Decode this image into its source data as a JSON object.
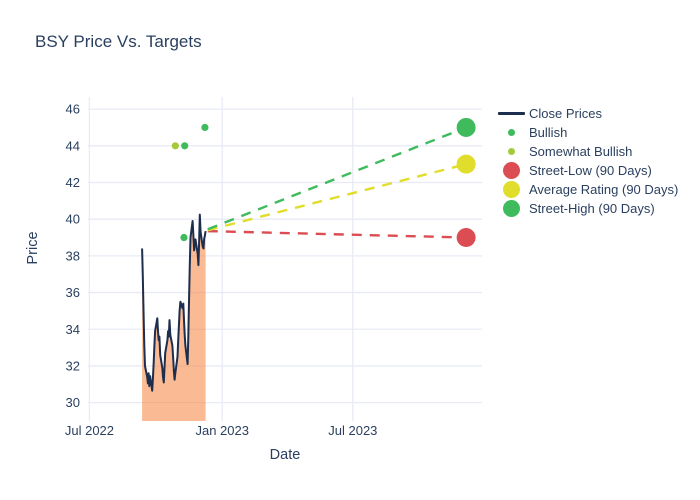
{
  "chart_data": {
    "type": "line",
    "title": "BSY Price Vs. Targets",
    "xlabel": "Date",
    "ylabel": "Price",
    "grid": true,
    "grid_color": "#e8ebf5",
    "text_color": "#2a3f5f",
    "background": "#ffffff",
    "xlim": [
      "2022-06-29",
      "2023-12-27"
    ],
    "ylim": [
      29.0,
      46.66
    ],
    "x_ticks": [
      {
        "date": "2022-07-01",
        "label": "Jul 2022"
      },
      {
        "date": "2023-01-01",
        "label": "Jan 2023"
      },
      {
        "date": "2023-07-01",
        "label": "Jul 2023"
      }
    ],
    "y_ticks": [
      30,
      32,
      34,
      36,
      38,
      40,
      42,
      44,
      46
    ],
    "close_prices": {
      "name": "Close Prices",
      "color": "#1d2e4e",
      "fill_color": "#f5823d",
      "fill_opacity": 0.55,
      "points": [
        [
          "2022-09-12",
          38.4
        ],
        [
          "2022-09-13",
          36.9
        ],
        [
          "2022-09-14",
          34.8
        ],
        [
          "2022-09-15",
          33.1
        ],
        [
          "2022-09-16",
          32.0
        ],
        [
          "2022-09-19",
          31.4
        ],
        [
          "2022-09-20",
          31.05
        ],
        [
          "2022-09-21",
          31.6
        ],
        [
          "2022-09-22",
          30.9
        ],
        [
          "2022-09-23",
          31.45
        ],
        [
          "2022-09-26",
          30.65
        ],
        [
          "2022-09-27",
          31.3
        ],
        [
          "2022-09-28",
          32.2
        ],
        [
          "2022-09-29",
          33.1
        ],
        [
          "2022-09-30",
          33.9
        ],
        [
          "2022-10-03",
          34.6
        ],
        [
          "2022-10-04",
          33.9
        ],
        [
          "2022-10-05",
          33.4
        ],
        [
          "2022-10-06",
          33.6
        ],
        [
          "2022-10-07",
          32.6
        ],
        [
          "2022-10-10",
          31.9
        ],
        [
          "2022-10-11",
          31.4
        ],
        [
          "2022-10-12",
          31.1
        ],
        [
          "2022-10-13",
          31.9
        ],
        [
          "2022-10-14",
          32.7
        ],
        [
          "2022-10-17",
          33.4
        ],
        [
          "2022-10-18",
          33.9
        ],
        [
          "2022-10-19",
          33.6
        ],
        [
          "2022-10-20",
          34.5
        ],
        [
          "2022-10-21",
          33.7
        ],
        [
          "2022-10-24",
          33.1
        ],
        [
          "2022-10-25",
          32.4
        ],
        [
          "2022-10-26",
          31.7
        ],
        [
          "2022-10-27",
          31.25
        ],
        [
          "2022-10-28",
          31.6
        ],
        [
          "2022-10-31",
          32.5
        ],
        [
          "2022-11-01",
          33.4
        ],
        [
          "2022-11-02",
          34.2
        ],
        [
          "2022-11-03",
          35.0
        ],
        [
          "2022-11-04",
          35.5
        ],
        [
          "2022-11-07",
          35.15
        ],
        [
          "2022-11-08",
          35.4
        ],
        [
          "2022-11-09",
          34.5
        ],
        [
          "2022-11-10",
          33.7
        ],
        [
          "2022-11-11",
          33.1
        ],
        [
          "2022-11-14",
          32.1
        ],
        [
          "2022-11-15",
          33.6
        ],
        [
          "2022-11-16",
          35.5
        ],
        [
          "2022-11-17",
          37.3
        ],
        [
          "2022-11-18",
          39.0
        ],
        [
          "2022-11-21",
          39.9
        ],
        [
          "2022-11-22",
          39.1
        ],
        [
          "2022-11-23",
          38.3
        ],
        [
          "2022-11-25",
          38.9
        ],
        [
          "2022-11-28",
          38.1
        ],
        [
          "2022-11-29",
          37.5
        ],
        [
          "2022-11-30",
          38.7
        ],
        [
          "2022-12-01",
          40.25
        ],
        [
          "2022-12-02",
          39.3
        ],
        [
          "2022-12-05",
          38.5
        ],
        [
          "2022-12-06",
          38.4
        ],
        [
          "2022-12-07",
          38.95
        ],
        [
          "2022-12-08",
          39.1
        ],
        [
          "2022-12-09",
          39.35
        ]
      ]
    },
    "ratings": [
      {
        "name": "Bullish",
        "color": "#3fbb5e",
        "points": [
          [
            "2022-11-09",
            39.0
          ],
          [
            "2022-11-10",
            44.0
          ],
          [
            "2022-12-08",
            45.0
          ]
        ]
      },
      {
        "name": "Somewhat Bullish",
        "color": "#a4c93a",
        "points": [
          [
            "2022-10-28",
            44.0
          ]
        ]
      }
    ],
    "targets": [
      {
        "name": "Street-Low (90 Days)",
        "color": "#db4d52",
        "start": [
          "2022-12-12",
          39.35
        ],
        "end": [
          "2023-12-05",
          39.0
        ]
      },
      {
        "name": "Average Rating (90 Days)",
        "color": "#e1dd2d",
        "start": [
          "2022-12-12",
          39.4
        ],
        "end": [
          "2023-12-05",
          43.0
        ]
      },
      {
        "name": "Street-High (90 Days)",
        "color": "#3fbb5e",
        "start": [
          "2022-12-12",
          39.45
        ],
        "end": [
          "2023-12-05",
          45.0
        ]
      }
    ],
    "legend": {
      "position": "right",
      "items": [
        {
          "label": "Close Prices",
          "marker": "line",
          "color": "#1d2e4e"
        },
        {
          "label": "Bullish",
          "marker": "dot-small",
          "color": "#3fbb5e"
        },
        {
          "label": "Somewhat Bullish",
          "marker": "dot-small",
          "color": "#a4c93a"
        },
        {
          "label": "Street-Low (90 Days)",
          "marker": "dot-large",
          "color": "#db4d52"
        },
        {
          "label": "Average Rating (90 Days)",
          "marker": "dot-large",
          "color": "#e1dd2d"
        },
        {
          "label": "Street-High (90 Days)",
          "marker": "dot-large",
          "color": "#3fbb5e"
        }
      ]
    }
  }
}
